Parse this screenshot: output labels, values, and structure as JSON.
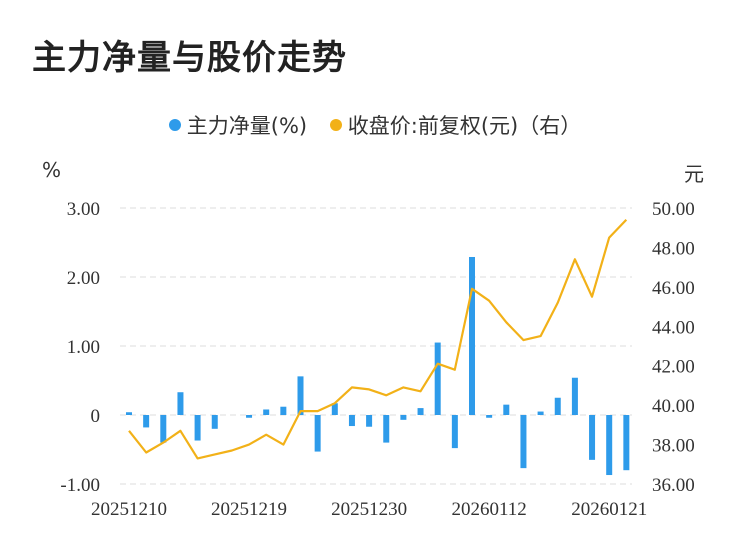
{
  "title": "主力净量与股价走势",
  "legend": [
    {
      "label": "主力净量(%)",
      "color": "#2E9BEA"
    },
    {
      "label": "收盘价:前复权(元)（右）",
      "color": "#F2B118"
    }
  ],
  "colors": {
    "bar": "#2E9BEA",
    "line": "#F2B118",
    "grid": "#dddddd"
  },
  "chart_data": {
    "type": "bar+line",
    "title": "主力净量与股价走势",
    "y_left_unit": "%",
    "y_right_unit": "元",
    "y_left_ticks": [
      "3.00",
      "2.00",
      "1.00",
      "0",
      "-1.00"
    ],
    "y_right_ticks": [
      "50.00",
      "48.00",
      "46.00",
      "44.00",
      "42.00",
      "40.00",
      "38.00",
      "36.00"
    ],
    "y_left_range": [
      -1,
      3
    ],
    "y_right_range": [
      36,
      50
    ],
    "x_tick_labels": [
      "20251210",
      "20251219",
      "20251230",
      "20260112",
      "20260121"
    ],
    "x_tick_indices": [
      0,
      7,
      14,
      21,
      28
    ],
    "grid": true,
    "legend_position": "top",
    "series": [
      {
        "name": "主力净量(%)",
        "type": "bar",
        "axis": "left",
        "values": [
          0.04,
          -0.18,
          -0.4,
          0.33,
          -0.37,
          -0.2,
          0.0,
          -0.04,
          0.08,
          0.12,
          0.56,
          -0.53,
          0.17,
          -0.16,
          -0.17,
          -0.4,
          -0.07,
          0.1,
          1.05,
          -0.48,
          2.29,
          -0.04,
          0.15,
          -0.77,
          0.05,
          0.25,
          0.54,
          -0.65,
          -0.87,
          -0.8
        ]
      },
      {
        "name": "收盘价:前复权(元)（右）",
        "type": "line",
        "axis": "right",
        "values": [
          38.7,
          37.6,
          38.1,
          38.7,
          37.3,
          37.5,
          37.7,
          38.0,
          38.5,
          38.0,
          39.7,
          39.7,
          40.1,
          40.9,
          40.8,
          40.5,
          40.9,
          40.7,
          42.1,
          41.8,
          45.9,
          45.3,
          44.2,
          43.3,
          43.5,
          45.2,
          47.4,
          45.5,
          48.5,
          49.4
        ]
      }
    ]
  }
}
